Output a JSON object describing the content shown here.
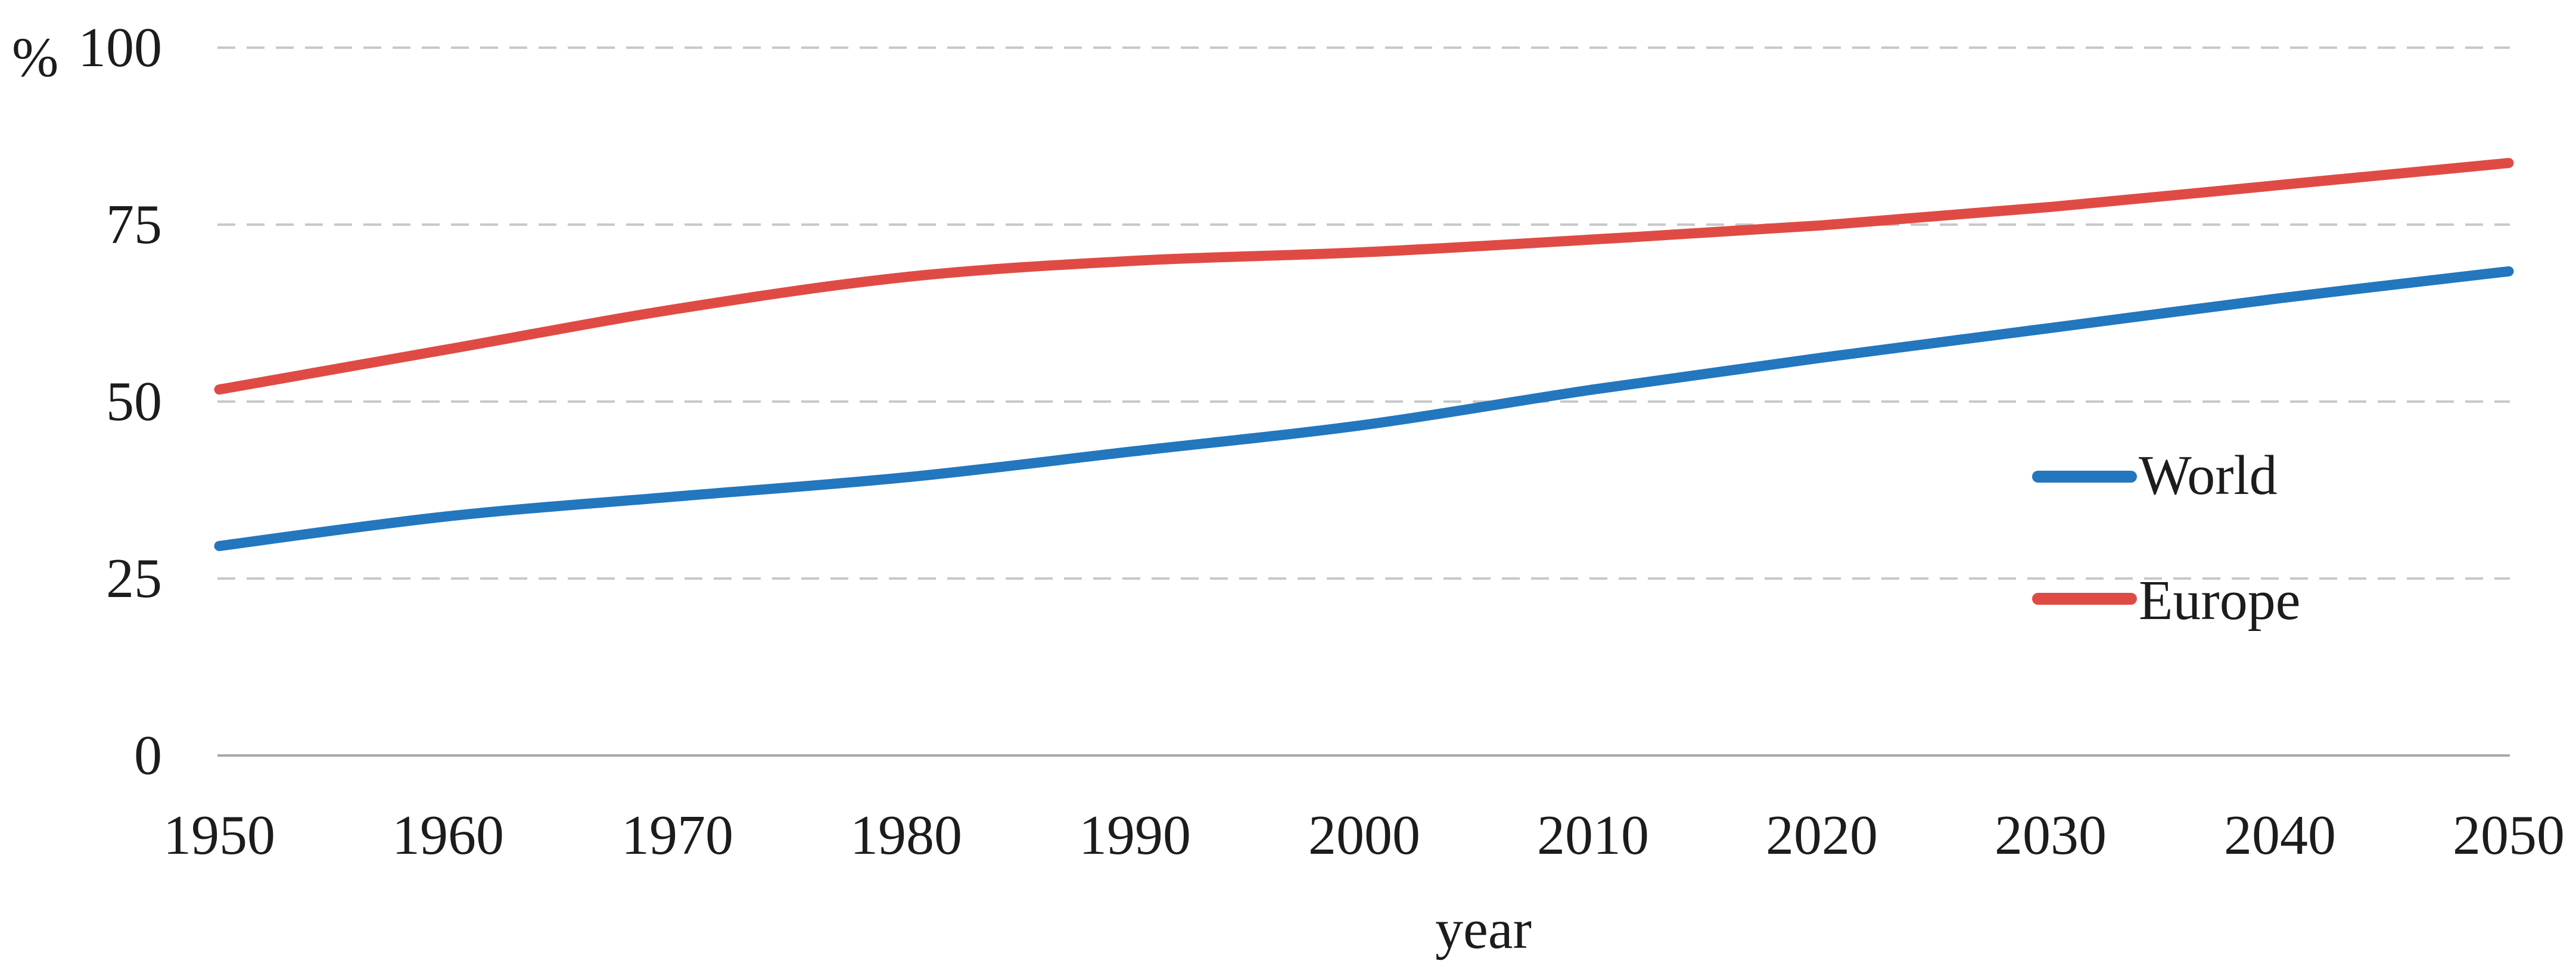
{
  "chart_data": {
    "type": "line",
    "title": "",
    "xlabel": "year",
    "ylabel": "%",
    "categories": [
      1950,
      1960,
      1970,
      1980,
      1990,
      2000,
      2010,
      2020,
      2030,
      2040,
      2050
    ],
    "series": [
      {
        "name": "World",
        "color": "#2277be",
        "values": [
          29.6,
          33.8,
          36.6,
          39.3,
          43.0,
          46.7,
          51.7,
          56.2,
          60.4,
          64.6,
          68.4
        ]
      },
      {
        "name": "Europe",
        "color": "#df4b44",
        "values": [
          51.7,
          57.4,
          63.1,
          67.6,
          69.9,
          71.1,
          72.9,
          74.9,
          77.5,
          80.6,
          83.7
        ]
      }
    ],
    "y_ticks": [
      100,
      75,
      50,
      25,
      0
    ],
    "ylim": [
      0,
      100
    ],
    "xlim": [
      1950,
      2050
    ],
    "grid": "horizontal-dashed",
    "legend_position": "inside-right",
    "grid_color": "#c8c8c8",
    "axis_color": "#a8a8a8",
    "text_color": "#1c1c1c"
  }
}
